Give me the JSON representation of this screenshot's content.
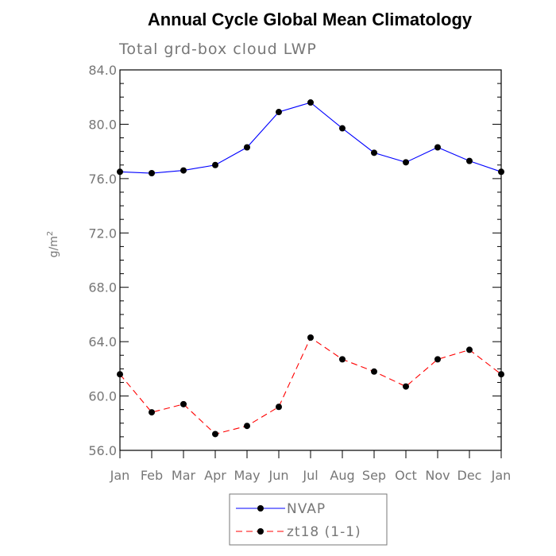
{
  "chart_data": {
    "type": "line",
    "title": "Annual Cycle Global Mean Climatology",
    "subtitle": "Total grd-box cloud LWP",
    "ylabel": "g/m²",
    "ylabel_base": "g/m",
    "ylabel_sup": "2",
    "xlabel": "",
    "categories": [
      "Jan",
      "Feb",
      "Mar",
      "Apr",
      "May",
      "Jun",
      "Jul",
      "Aug",
      "Sep",
      "Oct",
      "Nov",
      "Dec",
      "Jan"
    ],
    "ylim": [
      56.0,
      84.0
    ],
    "yticks": [
      "56.0",
      "60.0",
      "64.0",
      "68.0",
      "72.0",
      "76.0",
      "80.0",
      "84.0"
    ],
    "grid": false,
    "legend_position": "bottom-center",
    "series": [
      {
        "name": "NVAP",
        "color": "#0000ff",
        "line_style": "solid",
        "marker": "filled-circle",
        "values": [
          76.5,
          76.4,
          76.6,
          77.0,
          78.3,
          80.9,
          81.6,
          79.7,
          77.9,
          77.2,
          78.3,
          77.3,
          76.5
        ]
      },
      {
        "name": "zt18 (1-1)",
        "color": "#ff0000",
        "line_style": "dashed",
        "marker": "filled-circle",
        "values": [
          61.6,
          58.8,
          59.4,
          57.2,
          57.8,
          59.2,
          64.3,
          62.7,
          61.8,
          60.7,
          62.7,
          63.4,
          61.6
        ]
      }
    ]
  }
}
